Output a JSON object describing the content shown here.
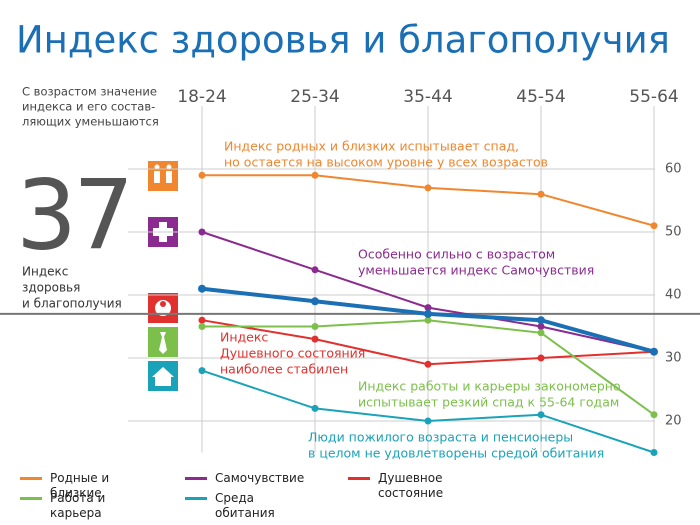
{
  "chart_data": {
    "type": "line",
    "title": "Индекс здоровья и благополучия",
    "categories": [
      "18-24",
      "25-34",
      "35-44",
      "45-54",
      "55-64"
    ],
    "series": [
      {
        "name": "Родные и близкие",
        "color": "#f0862e",
        "values": [
          59,
          59,
          57,
          56,
          51
        ]
      },
      {
        "name": "Самочувствие",
        "color": "#8b2a8f",
        "values": [
          50,
          44,
          38,
          35,
          31
        ]
      },
      {
        "name": "Душевное состояние",
        "color": "#e0312e",
        "values": [
          36,
          33,
          29,
          30,
          31
        ]
      },
      {
        "name": "Работа и карьера",
        "color": "#7cc04b",
        "values": [
          35,
          35,
          36,
          34,
          21
        ]
      },
      {
        "name": "Среда обитания",
        "color": "#1aa3b8",
        "values": [
          28,
          22,
          20,
          21,
          15
        ]
      }
    ],
    "index_series": {
      "color": "#1a6fb5",
      "values": [
        41,
        39,
        37,
        36,
        31
      ]
    },
    "average": 37,
    "average_label": [
      "Индекс",
      "здоровья",
      "и благополучия"
    ],
    "note": [
      "С возрастом значение",
      "индекса и его состав-",
      "ляющих уменьшаются"
    ],
    "annotations": [
      {
        "color": "#f0862e",
        "lines": [
          "Индекс родных и близких испытывает спад,",
          "но остается на высоком уровне у всех возрастов"
        ]
      },
      {
        "color": "#8b2a8f",
        "lines": [
          "Особенно сильно с возрастом",
          "уменьшается индекс Самочувствия"
        ]
      },
      {
        "color": "#e0312e",
        "lines": [
          "Индекс",
          "Душевного состояния",
          "наиболее стабилен"
        ]
      },
      {
        "color": "#7cc04b",
        "lines": [
          "Индекс работы и карьеры закономерно",
          "испытывает резкий спад к 55-64 годам"
        ]
      },
      {
        "color": "#1aa3b8",
        "lines": [
          "Люди пожилого возраста и пенсионеры",
          "в целом не удовлетворены средой обитания"
        ]
      }
    ],
    "ylim": [
      15,
      70
    ],
    "yticks": [
      20,
      30,
      40,
      50,
      60
    ],
    "grid": true
  }
}
